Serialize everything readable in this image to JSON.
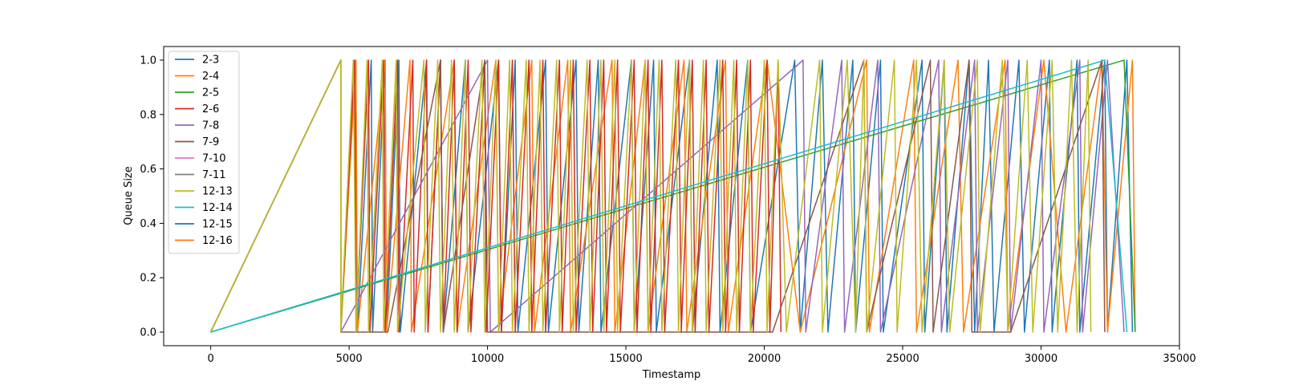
{
  "chart_data": {
    "type": "line",
    "title": "",
    "xlabel": "Timestamp",
    "ylabel": "Queue Size",
    "xlim": [
      -1700,
      35000
    ],
    "ylim": [
      -0.05,
      1.05
    ],
    "xticks": [
      0,
      5000,
      10000,
      15000,
      20000,
      25000,
      30000,
      35000
    ],
    "yticks": [
      0.0,
      0.2,
      0.4,
      0.6,
      0.8,
      1.0
    ],
    "xtick_labels": [
      "0",
      "5000",
      "10000",
      "15000",
      "20000",
      "25000",
      "30000",
      "35000"
    ],
    "ytick_labels": [
      "0.0",
      "0.2",
      "0.4",
      "0.6",
      "0.8",
      "1.0"
    ],
    "grid": false,
    "legend_position": "upper-left",
    "series": [
      {
        "name": "2-3",
        "color": "#1f77b4",
        "points": [
          [
            0,
            0
          ],
          [
            4700,
            1
          ],
          [
            4700,
            0
          ],
          [
            5200,
            1
          ],
          [
            5300,
            0
          ],
          [
            5800,
            1
          ],
          [
            5850,
            0
          ],
          [
            6300,
            1
          ],
          [
            6350,
            0
          ],
          [
            6800,
            1
          ],
          [
            6850,
            0
          ],
          [
            7800,
            1
          ],
          [
            7850,
            0
          ],
          [
            8300,
            1
          ],
          [
            8400,
            0
          ],
          [
            9200,
            1
          ],
          [
            9300,
            0
          ],
          [
            10400,
            1
          ],
          [
            10500,
            0
          ],
          [
            11000,
            1
          ],
          [
            11100,
            0
          ],
          [
            12100,
            1
          ],
          [
            12200,
            0
          ],
          [
            13200,
            1
          ],
          [
            13300,
            0
          ],
          [
            14000,
            1
          ],
          [
            14100,
            0
          ],
          [
            15200,
            1
          ],
          [
            15300,
            0
          ],
          [
            16000,
            1
          ],
          [
            16100,
            0
          ],
          [
            17300,
            1
          ],
          [
            17400,
            0
          ],
          [
            18300,
            1
          ],
          [
            18400,
            0
          ],
          [
            19400,
            1
          ],
          [
            19500,
            0
          ],
          [
            21100,
            1
          ],
          [
            21300,
            0
          ],
          [
            22100,
            1
          ],
          [
            22300,
            0
          ],
          [
            23200,
            1
          ],
          [
            23300,
            0
          ],
          [
            24200,
            1
          ],
          [
            24300,
            0
          ],
          [
            25700,
            1
          ],
          [
            25800,
            0
          ],
          [
            26500,
            1
          ],
          [
            26600,
            0
          ],
          [
            27400,
            1
          ],
          [
            27600,
            0
          ],
          [
            28100,
            1
          ],
          [
            28300,
            0
          ],
          [
            29200,
            1
          ],
          [
            29400,
            0
          ],
          [
            30300,
            1
          ],
          [
            30400,
            0
          ],
          [
            31300,
            1
          ],
          [
            31400,
            0
          ],
          [
            32300,
            1
          ],
          [
            32400,
            0
          ],
          [
            33100,
            1
          ],
          [
            33300,
            0
          ]
        ]
      },
      {
        "name": "2-4",
        "color": "#ff7f0e",
        "points": [
          [
            0,
            0
          ],
          [
            4700,
            1
          ],
          [
            4700,
            0
          ],
          [
            5250,
            1
          ],
          [
            5300,
            0
          ],
          [
            6300,
            1
          ],
          [
            6350,
            0
          ],
          [
            7200,
            1
          ],
          [
            7250,
            0
          ],
          [
            8800,
            1
          ],
          [
            8900,
            0
          ],
          [
            10300,
            1
          ],
          [
            10400,
            0
          ],
          [
            11600,
            1
          ],
          [
            11700,
            0
          ],
          [
            12900,
            1
          ],
          [
            13000,
            0
          ],
          [
            14500,
            1
          ],
          [
            14600,
            0
          ],
          [
            15700,
            1
          ],
          [
            15800,
            0
          ],
          [
            17100,
            1
          ],
          [
            17200,
            0
          ],
          [
            18600,
            1
          ],
          [
            18700,
            0
          ],
          [
            20100,
            1
          ],
          [
            21300,
            0
          ],
          [
            23700,
            1
          ],
          [
            23800,
            0
          ],
          [
            25400,
            1
          ],
          [
            25500,
            0
          ],
          [
            27000,
            1
          ],
          [
            27200,
            0
          ],
          [
            28700,
            1
          ],
          [
            28800,
            0
          ],
          [
            30100,
            1
          ],
          [
            30900,
            0
          ],
          [
            32200,
            1
          ],
          [
            32400,
            0
          ],
          [
            33300,
            1
          ],
          [
            33400,
            0
          ]
        ]
      },
      {
        "name": "2-5",
        "color": "#2ca02c",
        "points": [
          [
            0,
            0
          ],
          [
            33000,
            1
          ],
          [
            33400,
            0
          ]
        ]
      },
      {
        "name": "2-6",
        "color": "#d62728",
        "points": [
          [
            0,
            0
          ],
          [
            4700,
            1
          ],
          [
            4700,
            0
          ],
          [
            5200,
            1
          ],
          [
            5250,
            0
          ],
          [
            5700,
            1
          ],
          [
            5750,
            0
          ],
          [
            6250,
            1
          ],
          [
            6300,
            0
          ],
          [
            6750,
            1
          ],
          [
            6800,
            0
          ],
          [
            7300,
            1
          ],
          [
            7350,
            0
          ],
          [
            7800,
            1
          ],
          [
            7850,
            0
          ],
          [
            8300,
            1
          ],
          [
            8400,
            0
          ],
          [
            8800,
            1
          ],
          [
            8900,
            0
          ],
          [
            9300,
            1
          ],
          [
            9400,
            0
          ],
          [
            9900,
            1
          ],
          [
            9950,
            0
          ],
          [
            10400,
            1
          ],
          [
            10500,
            0
          ],
          [
            10900,
            1
          ],
          [
            11000,
            0
          ],
          [
            11500,
            1
          ],
          [
            11600,
            0
          ],
          [
            12000,
            1
          ],
          [
            12100,
            0
          ],
          [
            12600,
            1
          ],
          [
            12700,
            0
          ],
          [
            13100,
            1
          ],
          [
            13200,
            0
          ],
          [
            13700,
            1
          ],
          [
            13800,
            0
          ],
          [
            14200,
            1
          ],
          [
            14300,
            0
          ],
          [
            14700,
            1
          ],
          [
            14800,
            0
          ],
          [
            15300,
            1
          ],
          [
            15400,
            0
          ],
          [
            15800,
            1
          ],
          [
            15900,
            0
          ],
          [
            16300,
            1
          ],
          [
            16400,
            0
          ],
          [
            16900,
            1
          ],
          [
            17000,
            0
          ],
          [
            17400,
            1
          ],
          [
            17500,
            0
          ],
          [
            17900,
            1
          ],
          [
            18000,
            0
          ],
          [
            18500,
            1
          ],
          [
            18600,
            0
          ],
          [
            19000,
            1
          ],
          [
            19100,
            0
          ],
          [
            19500,
            1
          ],
          [
            19600,
            0
          ],
          [
            20100,
            1
          ],
          [
            20200,
            0
          ],
          [
            20500,
            1
          ],
          [
            20600,
            0
          ]
        ]
      },
      {
        "name": "7-8",
        "color": "#9467bd",
        "points": [
          [
            0,
            0
          ],
          [
            4700,
            1
          ],
          [
            4700,
            0
          ],
          [
            10000,
            1
          ],
          [
            10100,
            0
          ],
          [
            21400,
            1
          ],
          [
            21500,
            0
          ],
          [
            22800,
            1
          ],
          [
            22900,
            0
          ],
          [
            24100,
            1
          ],
          [
            24200,
            0
          ],
          [
            26300,
            1
          ],
          [
            26400,
            0
          ],
          [
            27600,
            1
          ],
          [
            27700,
            0
          ],
          [
            28800,
            1
          ],
          [
            28900,
            0
          ],
          [
            30000,
            1
          ],
          [
            30100,
            0
          ],
          [
            31400,
            1
          ],
          [
            31500,
            0
          ],
          [
            32400,
            1
          ],
          [
            33000,
            0
          ]
        ]
      },
      {
        "name": "7-9",
        "color": "#8c564b",
        "points": [
          [
            0,
            0
          ],
          [
            4700,
            1
          ],
          [
            4700,
            0
          ],
          [
            6400,
            0
          ],
          [
            8300,
            1
          ],
          [
            8400,
            0
          ],
          [
            9900,
            1
          ],
          [
            10000,
            0
          ],
          [
            20300,
            0
          ],
          [
            23600,
            1
          ],
          [
            23700,
            0
          ],
          [
            26000,
            1
          ],
          [
            26100,
            0
          ],
          [
            27400,
            1
          ],
          [
            27500,
            0
          ],
          [
            28900,
            0
          ],
          [
            32200,
            1
          ],
          [
            32300,
            0
          ]
        ]
      },
      {
        "name": "7-10",
        "color": "#e377c2",
        "points": [
          [
            0,
            0
          ],
          [
            4700,
            1
          ],
          [
            4700,
            0
          ]
        ]
      },
      {
        "name": "7-11",
        "color": "#7f7f7f",
        "points": [
          [
            0,
            0
          ],
          [
            4700,
            1
          ],
          [
            4700,
            0
          ]
        ]
      },
      {
        "name": "12-13",
        "color": "#bcbd22",
        "points": [
          [
            0,
            0
          ],
          [
            4700,
            1
          ],
          [
            4700,
            0
          ],
          [
            5150,
            1
          ],
          [
            5250,
            0
          ],
          [
            5650,
            1
          ],
          [
            5700,
            0
          ],
          [
            6200,
            1
          ],
          [
            6250,
            0
          ],
          [
            6700,
            1
          ],
          [
            6750,
            0
          ],
          [
            7700,
            1
          ],
          [
            7750,
            0
          ],
          [
            8200,
            1
          ],
          [
            8300,
            0
          ],
          [
            8700,
            1
          ],
          [
            8800,
            0
          ],
          [
            9200,
            1
          ],
          [
            9300,
            0
          ],
          [
            9800,
            1
          ],
          [
            9900,
            0
          ],
          [
            10300,
            1
          ],
          [
            10400,
            0
          ],
          [
            10800,
            1
          ],
          [
            10900,
            0
          ],
          [
            11400,
            1
          ],
          [
            11500,
            0
          ],
          [
            11900,
            1
          ],
          [
            12000,
            0
          ],
          [
            12500,
            1
          ],
          [
            12600,
            0
          ],
          [
            13000,
            1
          ],
          [
            13100,
            0
          ],
          [
            13600,
            1
          ],
          [
            13700,
            0
          ],
          [
            14100,
            1
          ],
          [
            14200,
            0
          ],
          [
            14600,
            1
          ],
          [
            14700,
            0
          ],
          [
            15200,
            1
          ],
          [
            15300,
            0
          ],
          [
            15700,
            1
          ],
          [
            15800,
            0
          ],
          [
            16200,
            1
          ],
          [
            16300,
            0
          ],
          [
            16800,
            1
          ],
          [
            16900,
            0
          ],
          [
            17300,
            1
          ],
          [
            17400,
            0
          ],
          [
            17800,
            1
          ],
          [
            17900,
            0
          ],
          [
            18400,
            1
          ],
          [
            18500,
            0
          ],
          [
            18900,
            1
          ],
          [
            19000,
            0
          ],
          [
            19400,
            1
          ],
          [
            19500,
            0
          ],
          [
            20000,
            1
          ],
          [
            20100,
            0
          ],
          [
            20500,
            1
          ],
          [
            20800,
            0
          ],
          [
            22000,
            1
          ],
          [
            22100,
            0
          ],
          [
            23000,
            1
          ],
          [
            23300,
            0
          ],
          [
            23600,
            1
          ],
          [
            23700,
            0
          ],
          [
            24700,
            1
          ],
          [
            24800,
            0
          ],
          [
            25500,
            1
          ],
          [
            25700,
            0
          ],
          [
            26500,
            1
          ],
          [
            26700,
            0
          ],
          [
            27700,
            1
          ],
          [
            27800,
            0
          ],
          [
            28600,
            1
          ],
          [
            28800,
            0
          ],
          [
            29500,
            1
          ],
          [
            29700,
            0
          ],
          [
            30400,
            1
          ],
          [
            30600,
            0
          ],
          [
            31100,
            1
          ],
          [
            31300,
            0
          ],
          [
            31700,
            1
          ],
          [
            31800,
            0
          ]
        ]
      },
      {
        "name": "12-14",
        "color": "#17becf",
        "points": [
          [
            0,
            0
          ],
          [
            32300,
            1
          ],
          [
            33100,
            0
          ]
        ]
      }
    ],
    "legend_only_series": [
      {
        "name": "12-15",
        "color": "#1f77b4"
      },
      {
        "name": "12-16",
        "color": "#ff7f0e"
      }
    ]
  }
}
